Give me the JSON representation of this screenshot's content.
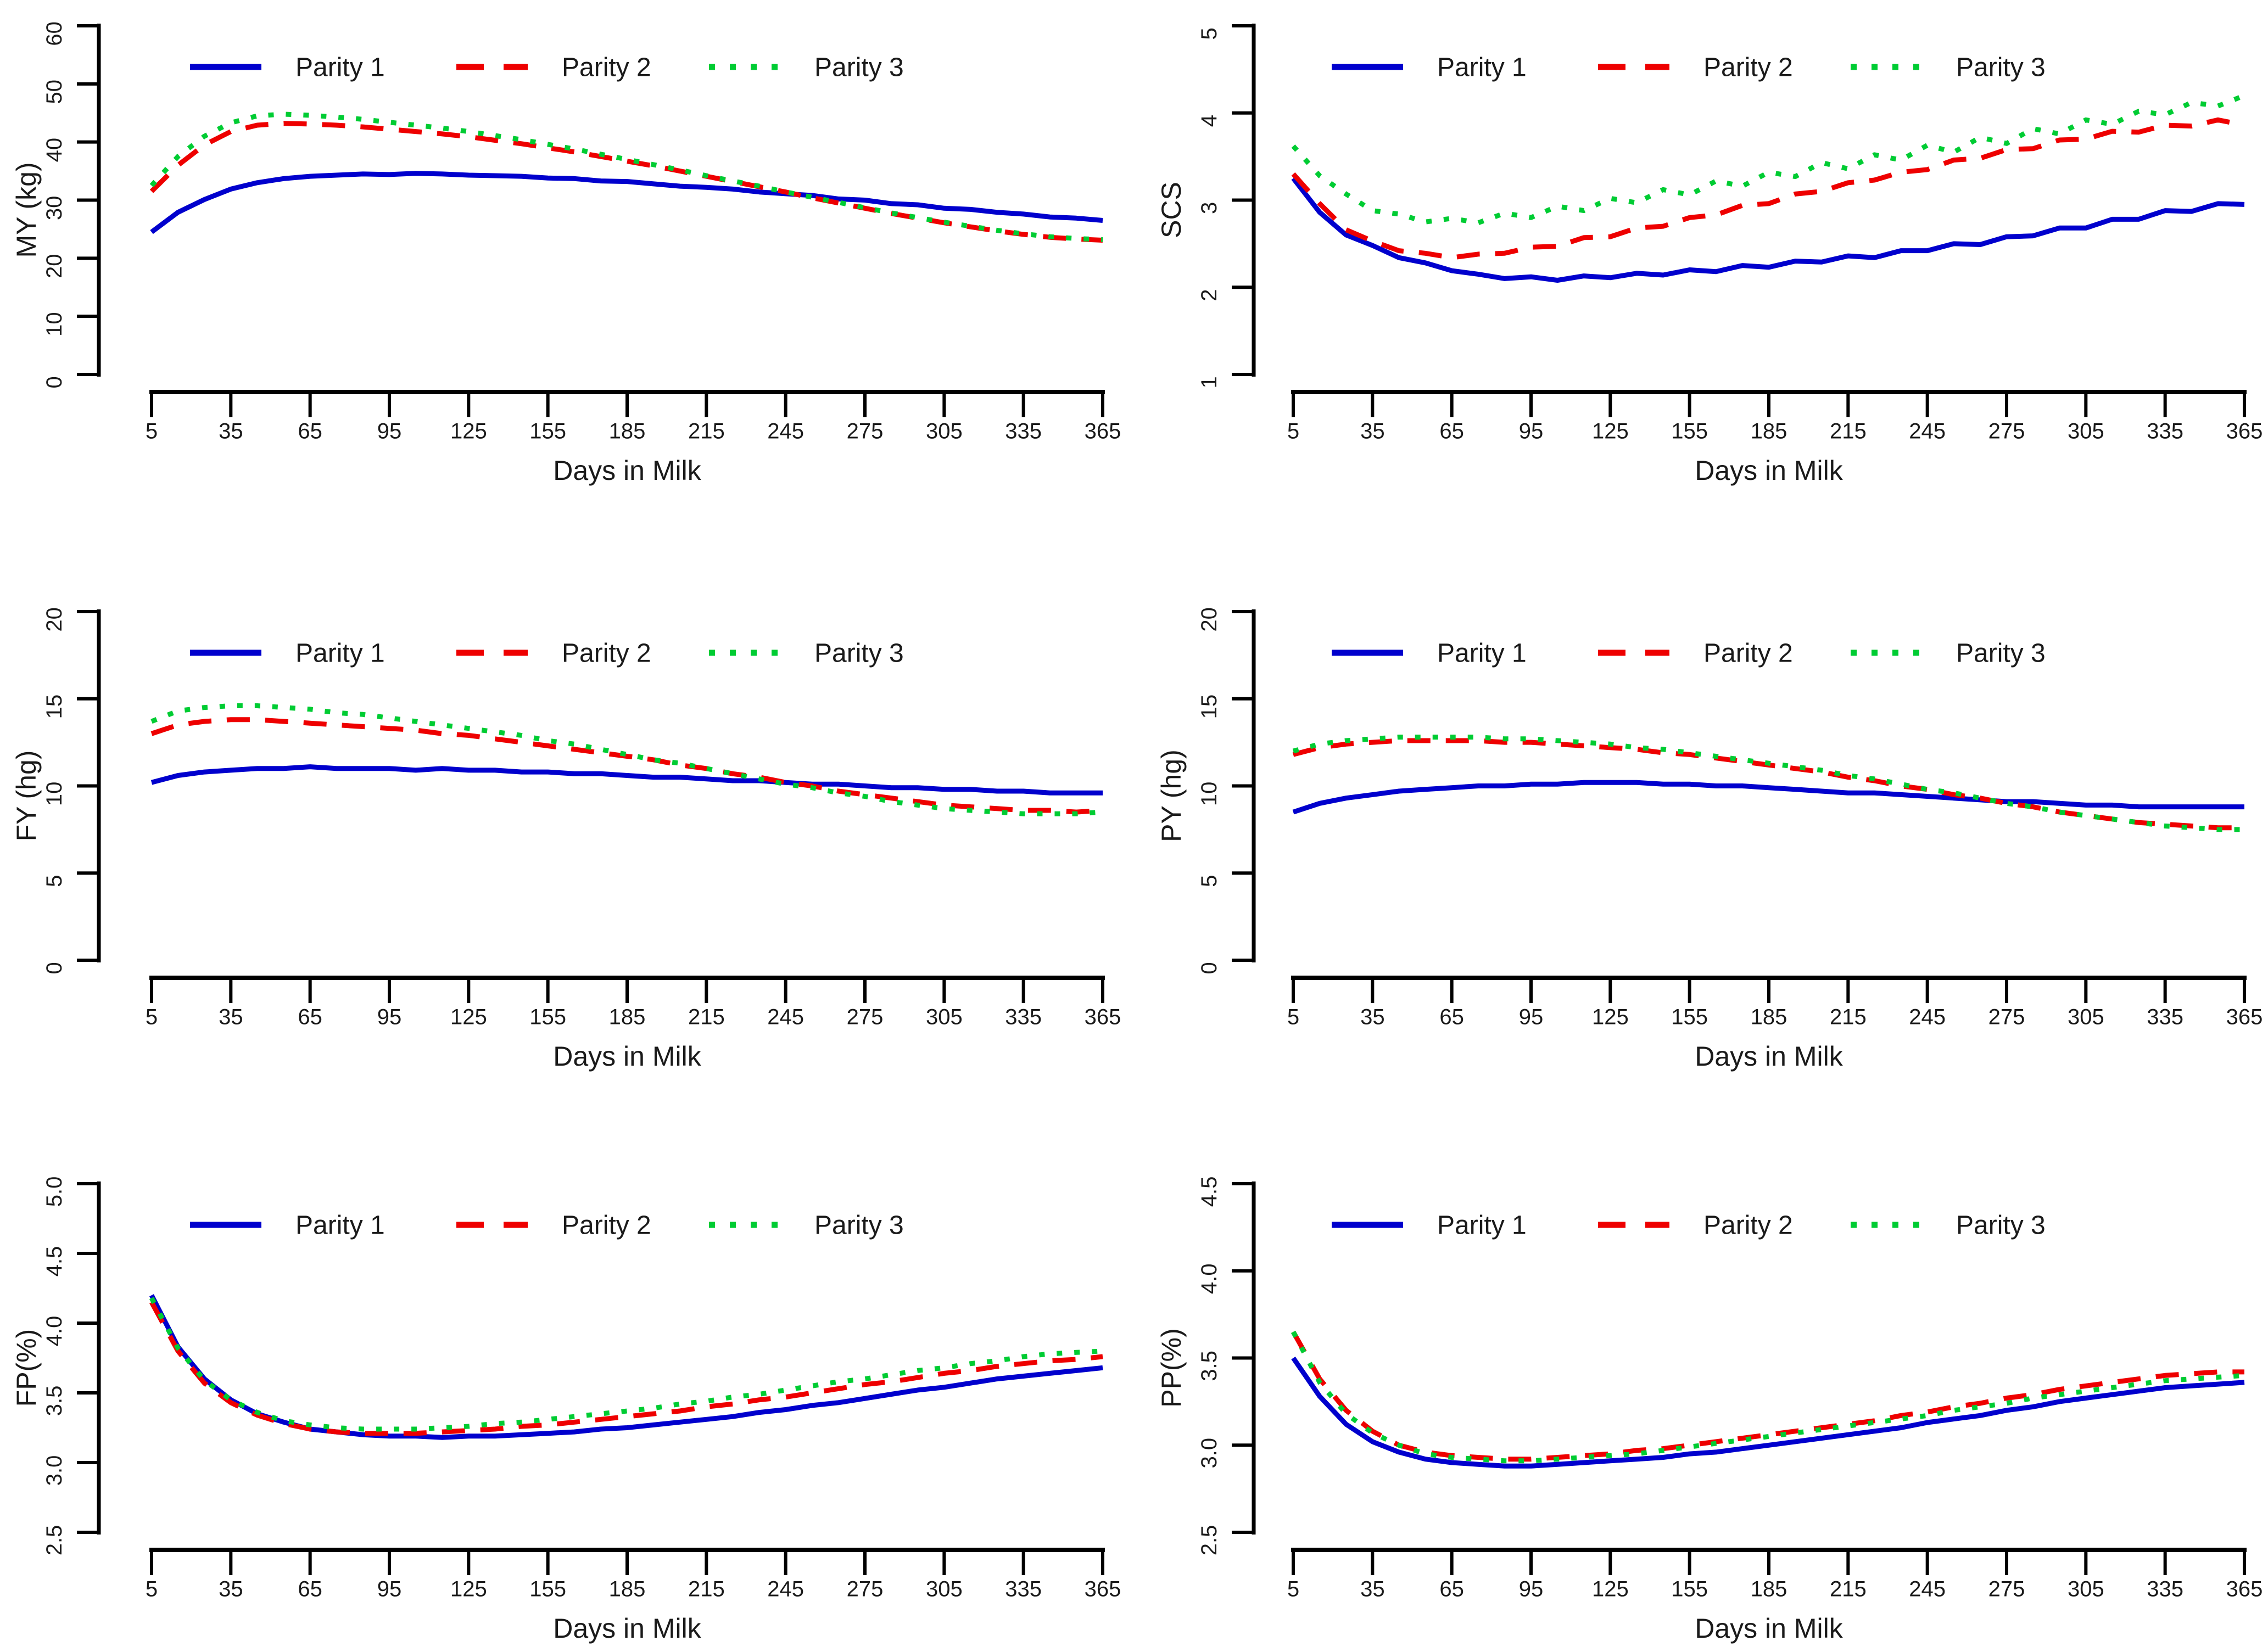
{
  "figure": {
    "background": "#ffffff",
    "x_axis_label": "Days in Milk",
    "x_ticks": [
      5,
      35,
      65,
      95,
      125,
      155,
      185,
      215,
      245,
      275,
      305,
      335,
      365
    ],
    "axis_color": "#000000",
    "tick_label_color": "#1a1a1a",
    "legend": [
      {
        "label": "Parity 1",
        "color": "#0000CD",
        "style": "solid"
      },
      {
        "label": "Parity 2",
        "color": "#EE0000",
        "style": "dashed"
      },
      {
        "label": "Parity 3",
        "color": "#00CC33",
        "style": "dotted"
      }
    ]
  },
  "chart_data": [
    {
      "id": "MY",
      "type": "line",
      "row": 0,
      "col": 0,
      "ylabel": "MY (kg)",
      "xlabel": "Days in Milk",
      "ylim": [
        0,
        60
      ],
      "yticks": [
        0,
        10,
        20,
        30,
        40,
        50,
        60
      ],
      "ytick_format": 0,
      "xlim": [
        5,
        365
      ],
      "grid": false,
      "legend_position": "top-left-inside",
      "x": [
        5,
        15,
        25,
        35,
        45,
        55,
        65,
        75,
        85,
        95,
        105,
        115,
        125,
        135,
        145,
        155,
        165,
        175,
        185,
        195,
        205,
        215,
        225,
        235,
        245,
        255,
        265,
        275,
        285,
        295,
        305,
        315,
        325,
        335,
        345,
        355,
        365
      ],
      "series": [
        {
          "name": "Parity 1",
          "values": [
            24.5,
            27.9,
            30.1,
            31.9,
            33.0,
            33.7,
            34.1,
            34.3,
            34.5,
            34.4,
            34.6,
            34.5,
            34.3,
            34.2,
            34.1,
            33.8,
            33.7,
            33.3,
            33.2,
            32.8,
            32.4,
            32.2,
            31.9,
            31.4,
            31.1,
            30.8,
            30.2,
            30.0,
            29.4,
            29.2,
            28.6,
            28.4,
            27.9,
            27.6,
            27.1,
            26.9,
            26.5
          ]
        },
        {
          "name": "Parity 2",
          "values": [
            31.5,
            36.0,
            39.5,
            41.8,
            42.9,
            43.2,
            43.1,
            42.9,
            42.6,
            42.2,
            41.8,
            41.4,
            40.9,
            40.3,
            39.7,
            39.0,
            38.3,
            37.5,
            36.7,
            35.9,
            35.0,
            34.1,
            33.2,
            32.3,
            31.4,
            30.4,
            29.5,
            28.6,
            27.7,
            26.9,
            26.1,
            25.4,
            24.7,
            24.1,
            23.6,
            23.3,
            23.1
          ]
        },
        {
          "name": "Parity 3",
          "values": [
            32.5,
            37.5,
            41.0,
            43.3,
            44.5,
            44.8,
            44.6,
            44.3,
            43.9,
            43.4,
            42.9,
            42.4,
            41.8,
            41.1,
            40.4,
            39.6,
            38.8,
            37.9,
            37.0,
            36.1,
            35.2,
            34.2,
            33.3,
            32.4,
            31.4,
            30.5,
            29.6,
            28.7,
            27.8,
            27.0,
            26.2,
            25.5,
            24.8,
            24.2,
            23.7,
            23.4,
            23.2
          ]
        }
      ]
    },
    {
      "id": "SCS",
      "type": "line",
      "row": 0,
      "col": 1,
      "ylabel": "SCS",
      "xlabel": "Days in Milk",
      "ylim": [
        1,
        5
      ],
      "yticks": [
        1,
        2,
        3,
        4,
        5
      ],
      "ytick_format": 0,
      "xlim": [
        5,
        365
      ],
      "grid": false,
      "legend_position": "top-left-inside",
      "x": [
        5,
        15,
        25,
        35,
        45,
        55,
        65,
        75,
        85,
        95,
        105,
        115,
        125,
        135,
        145,
        155,
        165,
        175,
        185,
        195,
        205,
        215,
        225,
        235,
        245,
        255,
        265,
        275,
        285,
        295,
        305,
        315,
        325,
        335,
        345,
        355,
        365
      ],
      "series": [
        {
          "name": "Parity 1",
          "values": [
            3.25,
            2.86,
            2.6,
            2.48,
            2.34,
            2.28,
            2.19,
            2.15,
            2.1,
            2.12,
            2.08,
            2.13,
            2.11,
            2.16,
            2.14,
            2.2,
            2.18,
            2.25,
            2.23,
            2.3,
            2.29,
            2.36,
            2.34,
            2.42,
            2.42,
            2.5,
            2.49,
            2.58,
            2.59,
            2.68,
            2.68,
            2.78,
            2.78,
            2.88,
            2.87,
            2.96,
            2.95
          ]
        },
        {
          "name": "Parity 2",
          "values": [
            3.3,
            2.96,
            2.66,
            2.53,
            2.42,
            2.39,
            2.34,
            2.38,
            2.39,
            2.46,
            2.47,
            2.57,
            2.58,
            2.68,
            2.7,
            2.8,
            2.83,
            2.94,
            2.96,
            3.07,
            3.1,
            3.2,
            3.23,
            3.32,
            3.35,
            3.46,
            3.48,
            3.58,
            3.59,
            3.69,
            3.7,
            3.79,
            3.78,
            3.86,
            3.85,
            3.92,
            3.86
          ]
        },
        {
          "name": "Parity 3",
          "values": [
            3.62,
            3.28,
            3.07,
            2.88,
            2.84,
            2.75,
            2.79,
            2.74,
            2.85,
            2.8,
            2.93,
            2.88,
            3.02,
            2.97,
            3.12,
            3.06,
            3.22,
            3.16,
            3.32,
            3.27,
            3.43,
            3.36,
            3.52,
            3.46,
            3.63,
            3.55,
            3.72,
            3.65,
            3.82,
            3.76,
            3.92,
            3.87,
            4.02,
            3.98,
            4.12,
            4.08,
            4.2
          ]
        }
      ]
    },
    {
      "id": "FY",
      "type": "line",
      "row": 1,
      "col": 0,
      "ylabel": "FY (hg)",
      "xlabel": "Days in Milk",
      "ylim": [
        0,
        20
      ],
      "yticks": [
        0,
        5,
        10,
        15,
        20
      ],
      "ytick_format": 0,
      "xlim": [
        5,
        365
      ],
      "grid": false,
      "legend_position": "top-left-inside",
      "x": [
        5,
        15,
        25,
        35,
        45,
        55,
        65,
        75,
        85,
        95,
        105,
        115,
        125,
        135,
        145,
        155,
        165,
        175,
        185,
        195,
        205,
        215,
        225,
        235,
        245,
        255,
        265,
        275,
        285,
        295,
        305,
        315,
        325,
        335,
        345,
        355,
        365
      ],
      "series": [
        {
          "name": "Parity 1",
          "values": [
            10.2,
            10.6,
            10.8,
            10.9,
            11.0,
            11.0,
            11.1,
            11.0,
            11.0,
            11.0,
            10.9,
            11.0,
            10.9,
            10.9,
            10.8,
            10.8,
            10.7,
            10.7,
            10.6,
            10.5,
            10.5,
            10.4,
            10.3,
            10.3,
            10.2,
            10.1,
            10.1,
            10.0,
            9.9,
            9.9,
            9.8,
            9.8,
            9.7,
            9.7,
            9.6,
            9.6,
            9.6
          ]
        },
        {
          "name": "Parity 2",
          "values": [
            13.0,
            13.5,
            13.7,
            13.8,
            13.8,
            13.7,
            13.6,
            13.5,
            13.4,
            13.3,
            13.2,
            13.0,
            12.9,
            12.7,
            12.5,
            12.3,
            12.1,
            11.9,
            11.7,
            11.5,
            11.2,
            11.0,
            10.7,
            10.5,
            10.2,
            10.0,
            9.7,
            9.5,
            9.3,
            9.1,
            8.9,
            8.8,
            8.7,
            8.6,
            8.6,
            8.5,
            8.6
          ]
        },
        {
          "name": "Parity 3",
          "values": [
            13.7,
            14.3,
            14.5,
            14.6,
            14.6,
            14.5,
            14.4,
            14.2,
            14.1,
            13.9,
            13.7,
            13.5,
            13.3,
            13.1,
            12.9,
            12.6,
            12.4,
            12.1,
            11.8,
            11.5,
            11.3,
            11.0,
            10.7,
            10.4,
            10.1,
            9.9,
            9.6,
            9.4,
            9.1,
            8.9,
            8.7,
            8.6,
            8.5,
            8.4,
            8.4,
            8.4,
            8.5
          ]
        }
      ]
    },
    {
      "id": "PY",
      "type": "line",
      "row": 1,
      "col": 1,
      "ylabel": "PY (hg)",
      "xlabel": "Days in Milk",
      "ylim": [
        0,
        20
      ],
      "yticks": [
        0,
        5,
        10,
        15,
        20
      ],
      "ytick_format": 0,
      "xlim": [
        5,
        365
      ],
      "grid": false,
      "legend_position": "top-left-inside",
      "x": [
        5,
        15,
        25,
        35,
        45,
        55,
        65,
        75,
        85,
        95,
        105,
        115,
        125,
        135,
        145,
        155,
        165,
        175,
        185,
        195,
        205,
        215,
        225,
        235,
        245,
        255,
        265,
        275,
        285,
        295,
        305,
        315,
        325,
        335,
        345,
        355,
        365
      ],
      "series": [
        {
          "name": "Parity 1",
          "values": [
            8.5,
            9.0,
            9.3,
            9.5,
            9.7,
            9.8,
            9.9,
            10.0,
            10.0,
            10.1,
            10.1,
            10.2,
            10.2,
            10.2,
            10.1,
            10.1,
            10.0,
            10.0,
            9.9,
            9.8,
            9.7,
            9.6,
            9.6,
            9.5,
            9.4,
            9.3,
            9.2,
            9.1,
            9.1,
            9.0,
            8.9,
            8.9,
            8.8,
            8.8,
            8.8,
            8.8,
            8.8
          ]
        },
        {
          "name": "Parity 2",
          "values": [
            11.8,
            12.2,
            12.4,
            12.5,
            12.6,
            12.6,
            12.6,
            12.6,
            12.5,
            12.5,
            12.4,
            12.3,
            12.2,
            12.1,
            11.9,
            11.8,
            11.6,
            11.4,
            11.2,
            11.0,
            10.8,
            10.5,
            10.3,
            10.0,
            9.8,
            9.5,
            9.3,
            9.0,
            8.8,
            8.5,
            8.3,
            8.1,
            7.9,
            7.8,
            7.7,
            7.6,
            7.6
          ]
        },
        {
          "name": "Parity 3",
          "values": [
            12.0,
            12.4,
            12.6,
            12.7,
            12.8,
            12.8,
            12.8,
            12.8,
            12.7,
            12.7,
            12.6,
            12.5,
            12.4,
            12.2,
            12.1,
            11.9,
            11.7,
            11.5,
            11.3,
            11.1,
            10.9,
            10.6,
            10.4,
            10.1,
            9.8,
            9.6,
            9.3,
            9.0,
            8.8,
            8.5,
            8.3,
            8.1,
            7.9,
            7.7,
            7.6,
            7.5,
            7.5
          ]
        }
      ]
    },
    {
      "id": "FP",
      "type": "line",
      "row": 2,
      "col": 0,
      "ylabel": "FP(%)",
      "xlabel": "Days in Milk",
      "ylim": [
        2.5,
        5.0
      ],
      "yticks": [
        2.5,
        3.0,
        3.5,
        4.0,
        4.5,
        5.0
      ],
      "ytick_format": 1,
      "xlim": [
        5,
        365
      ],
      "grid": false,
      "legend_position": "top-left-inside",
      "x": [
        5,
        15,
        25,
        35,
        45,
        55,
        65,
        75,
        85,
        95,
        105,
        115,
        125,
        135,
        145,
        155,
        165,
        175,
        185,
        195,
        205,
        215,
        225,
        235,
        245,
        255,
        265,
        275,
        285,
        295,
        305,
        315,
        325,
        335,
        345,
        355,
        365
      ],
      "series": [
        {
          "name": "Parity 1",
          "values": [
            4.2,
            3.83,
            3.6,
            3.45,
            3.35,
            3.29,
            3.24,
            3.22,
            3.2,
            3.19,
            3.19,
            3.18,
            3.19,
            3.19,
            3.2,
            3.21,
            3.22,
            3.24,
            3.25,
            3.27,
            3.29,
            3.31,
            3.33,
            3.36,
            3.38,
            3.41,
            3.43,
            3.46,
            3.49,
            3.52,
            3.54,
            3.57,
            3.6,
            3.62,
            3.64,
            3.66,
            3.68
          ]
        },
        {
          "name": "Parity 2",
          "values": [
            4.15,
            3.8,
            3.57,
            3.43,
            3.34,
            3.28,
            3.24,
            3.22,
            3.21,
            3.21,
            3.21,
            3.22,
            3.23,
            3.24,
            3.26,
            3.27,
            3.29,
            3.31,
            3.33,
            3.35,
            3.37,
            3.4,
            3.42,
            3.45,
            3.47,
            3.5,
            3.53,
            3.56,
            3.58,
            3.61,
            3.64,
            3.66,
            3.69,
            3.71,
            3.73,
            3.74,
            3.76
          ]
        },
        {
          "name": "Parity 3",
          "values": [
            4.18,
            3.82,
            3.59,
            3.45,
            3.36,
            3.3,
            3.27,
            3.25,
            3.24,
            3.24,
            3.24,
            3.25,
            3.26,
            3.28,
            3.29,
            3.31,
            3.33,
            3.35,
            3.37,
            3.39,
            3.42,
            3.44,
            3.47,
            3.49,
            3.52,
            3.55,
            3.58,
            3.6,
            3.63,
            3.66,
            3.68,
            3.71,
            3.73,
            3.76,
            3.78,
            3.79,
            3.8
          ]
        }
      ]
    },
    {
      "id": "PP",
      "type": "line",
      "row": 2,
      "col": 1,
      "ylabel": "PP(%)",
      "xlabel": "Days in Milk",
      "ylim": [
        2.5,
        4.5
      ],
      "yticks": [
        2.5,
        3.0,
        3.5,
        4.0,
        4.5
      ],
      "ytick_format": 1,
      "xlim": [
        5,
        365
      ],
      "grid": false,
      "legend_position": "top-left-inside",
      "x": [
        5,
        15,
        25,
        35,
        45,
        55,
        65,
        75,
        85,
        95,
        105,
        115,
        125,
        135,
        145,
        155,
        165,
        175,
        185,
        195,
        205,
        215,
        225,
        235,
        245,
        255,
        265,
        275,
        285,
        295,
        305,
        315,
        325,
        335,
        345,
        355,
        365
      ],
      "series": [
        {
          "name": "Parity 1",
          "values": [
            3.5,
            3.28,
            3.12,
            3.02,
            2.96,
            2.92,
            2.9,
            2.89,
            2.88,
            2.88,
            2.89,
            2.9,
            2.91,
            2.92,
            2.93,
            2.95,
            2.96,
            2.98,
            3.0,
            3.02,
            3.04,
            3.06,
            3.08,
            3.1,
            3.13,
            3.15,
            3.17,
            3.2,
            3.22,
            3.25,
            3.27,
            3.29,
            3.31,
            3.33,
            3.34,
            3.35,
            3.36
          ]
        },
        {
          "name": "Parity 2",
          "values": [
            3.65,
            3.38,
            3.2,
            3.08,
            3.0,
            2.96,
            2.94,
            2.93,
            2.92,
            2.92,
            2.93,
            2.94,
            2.95,
            2.97,
            2.98,
            3.0,
            3.02,
            3.04,
            3.06,
            3.08,
            3.1,
            3.12,
            3.14,
            3.17,
            3.19,
            3.22,
            3.24,
            3.27,
            3.29,
            3.32,
            3.34,
            3.36,
            3.38,
            3.4,
            3.41,
            3.42,
            3.42
          ]
        },
        {
          "name": "Parity 3",
          "values": [
            3.65,
            3.36,
            3.18,
            3.07,
            3.0,
            2.95,
            2.93,
            2.92,
            2.91,
            2.91,
            2.92,
            2.93,
            2.94,
            2.95,
            2.97,
            2.99,
            3.01,
            3.03,
            3.05,
            3.07,
            3.09,
            3.11,
            3.13,
            3.15,
            3.17,
            3.2,
            3.22,
            3.24,
            3.27,
            3.29,
            3.31,
            3.33,
            3.35,
            3.37,
            3.38,
            3.39,
            3.4
          ]
        }
      ]
    }
  ]
}
